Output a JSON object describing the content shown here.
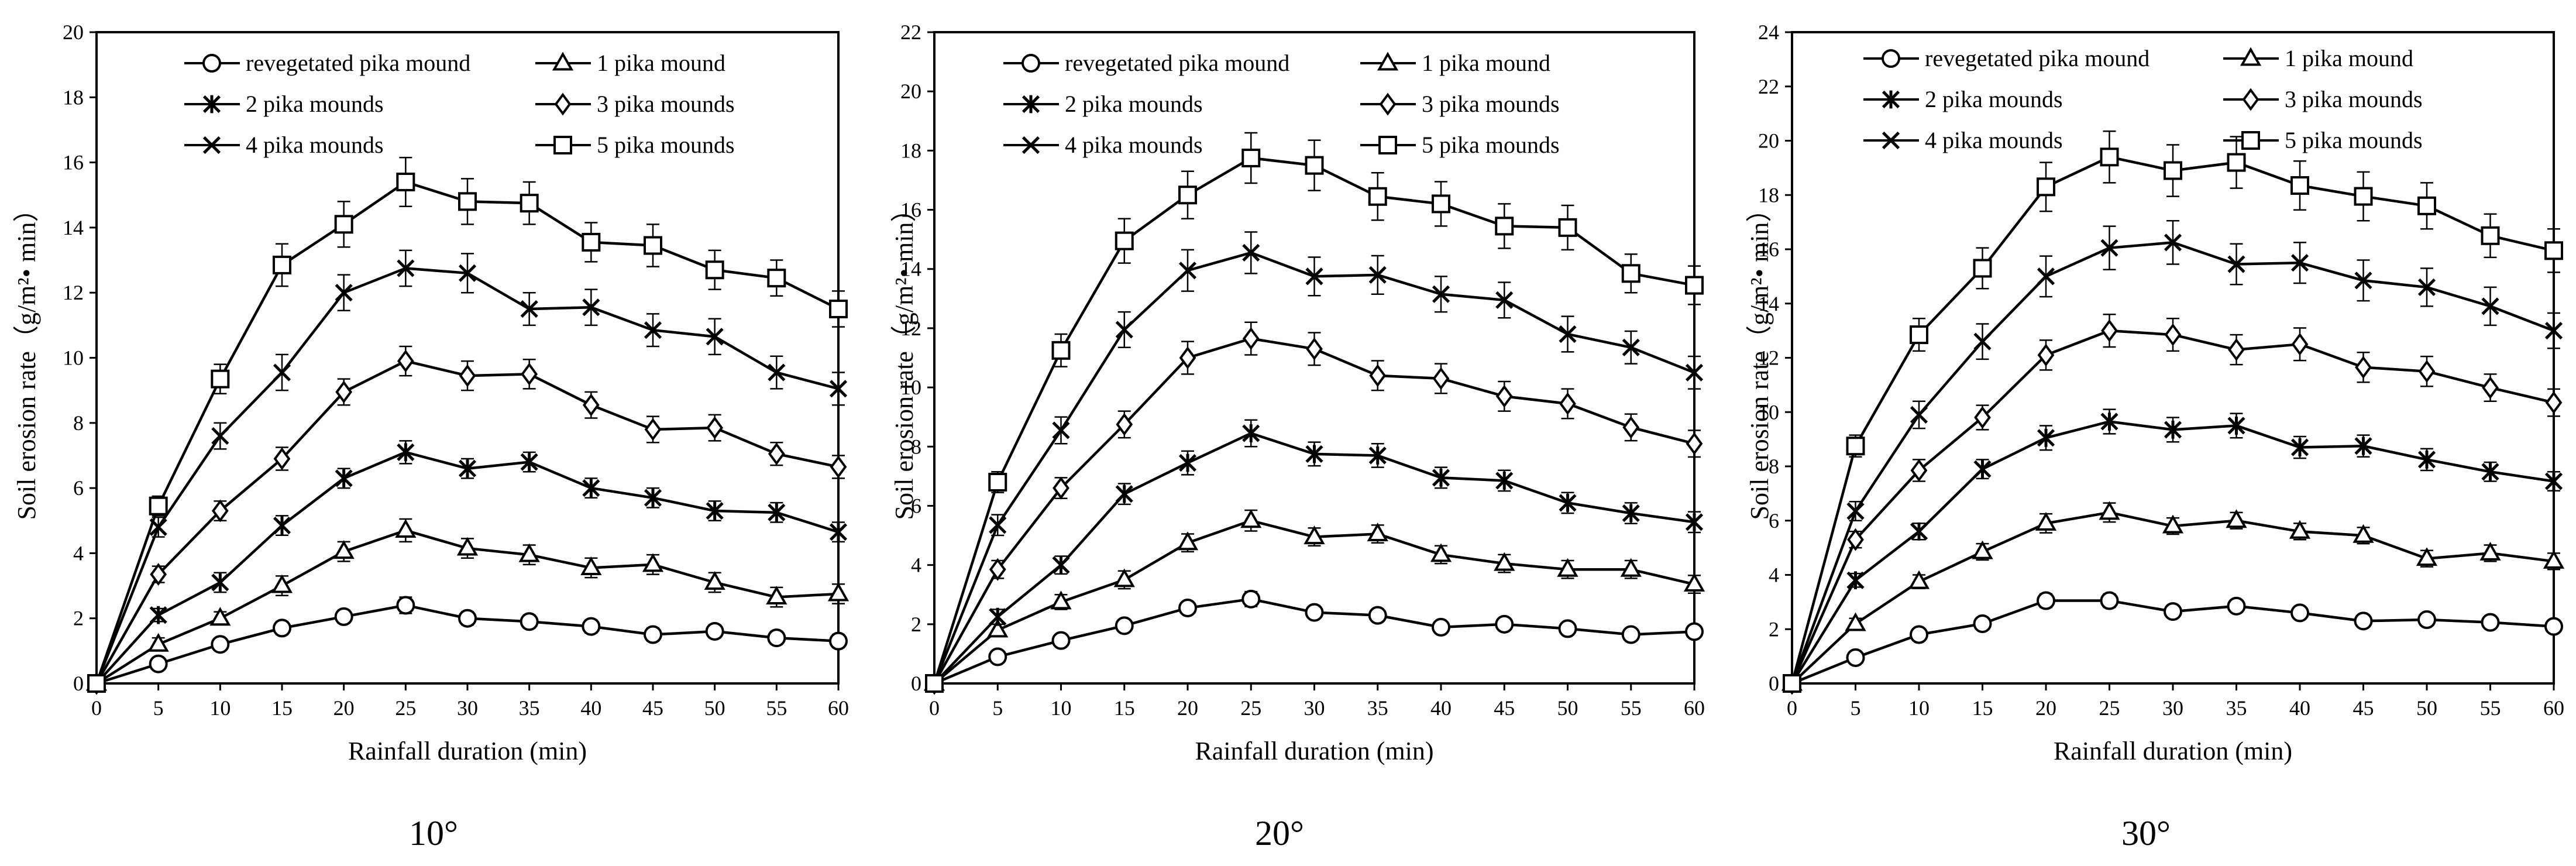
{
  "figure": {
    "line_color": "#000000",
    "series_markers": [
      "circle",
      "triangle",
      "asterisk",
      "diamond",
      "cross",
      "square"
    ]
  },
  "chart_data": [
    {
      "type": "line",
      "title": "10°",
      "xlabel": "Rainfall duration (min)",
      "ylabel": "Soil erosion rate（g/m²• min）",
      "xlim": [
        0,
        60
      ],
      "ylim": [
        0,
        20
      ],
      "xticks": [
        0,
        5,
        10,
        15,
        20,
        25,
        30,
        35,
        40,
        45,
        50,
        55,
        60
      ],
      "yticks": [
        0,
        2,
        4,
        6,
        8,
        10,
        12,
        14,
        16,
        18,
        20
      ],
      "legend_position": "top",
      "x": [
        0,
        5,
        10,
        15,
        20,
        25,
        30,
        35,
        40,
        45,
        50,
        55,
        60
      ],
      "series": [
        {
          "name": "revegetated pika mound",
          "marker": "circle",
          "values": [
            0,
            0.6,
            1.2,
            1.7,
            2.05,
            2.4,
            2.0,
            1.9,
            1.75,
            1.5,
            1.6,
            1.4,
            1.3
          ],
          "errors": [
            0,
            0.15,
            0.15,
            0.2,
            0.2,
            0.25,
            0.2,
            0.2,
            0.2,
            0.2,
            0.2,
            0.2,
            0.2
          ]
        },
        {
          "name": "1 pika mound",
          "marker": "triangle",
          "values": [
            0,
            1.2,
            2.0,
            3.0,
            4.05,
            4.7,
            4.15,
            3.95,
            3.55,
            3.65,
            3.1,
            2.65,
            2.75
          ],
          "errors": [
            0,
            0.2,
            0.2,
            0.3,
            0.3,
            0.35,
            0.3,
            0.3,
            0.3,
            0.3,
            0.3,
            0.3,
            0.3
          ]
        },
        {
          "name": "2 pika mounds",
          "marker": "asterisk",
          "values": [
            0,
            2.1,
            3.1,
            4.85,
            6.3,
            7.1,
            6.6,
            6.8,
            6.0,
            5.7,
            5.3,
            5.25,
            4.65
          ],
          "errors": [
            0,
            0.2,
            0.3,
            0.3,
            0.3,
            0.35,
            0.3,
            0.3,
            0.3,
            0.3,
            0.3,
            0.3,
            0.3
          ]
        },
        {
          "name": "3 pika mounds",
          "marker": "diamond",
          "values": [
            0,
            3.35,
            5.3,
            6.9,
            8.95,
            9.9,
            9.45,
            9.5,
            8.55,
            7.8,
            7.85,
            7.05,
            6.65
          ],
          "errors": [
            0,
            0.25,
            0.3,
            0.35,
            0.4,
            0.45,
            0.45,
            0.45,
            0.4,
            0.4,
            0.4,
            0.35,
            0.35
          ]
        },
        {
          "name": "4 pika mounds",
          "marker": "cross",
          "values": [
            0,
            4.8,
            7.6,
            9.55,
            12.0,
            12.75,
            12.6,
            11.5,
            11.55,
            10.85,
            10.65,
            9.55,
            9.05
          ],
          "errors": [
            0,
            0.3,
            0.4,
            0.55,
            0.55,
            0.55,
            0.6,
            0.5,
            0.55,
            0.5,
            0.55,
            0.5,
            0.5
          ]
        },
        {
          "name": "5 pika mounds",
          "marker": "square",
          "values": [
            0,
            5.45,
            9.35,
            12.85,
            14.1,
            15.4,
            14.8,
            14.75,
            13.55,
            13.45,
            12.7,
            12.45,
            11.5
          ],
          "errors": [
            0,
            0.3,
            0.45,
            0.65,
            0.7,
            0.75,
            0.7,
            0.65,
            0.6,
            0.65,
            0.6,
            0.55,
            0.55
          ]
        }
      ]
    },
    {
      "type": "line",
      "title": "20°",
      "xlabel": "Rainfall duration (min)",
      "ylabel": "Soil erosion rate（g/m²• min）",
      "xlim": [
        0,
        60
      ],
      "ylim": [
        0,
        22
      ],
      "xticks": [
        0,
        5,
        10,
        15,
        20,
        25,
        30,
        35,
        40,
        45,
        50,
        55,
        60
      ],
      "yticks": [
        0,
        2,
        4,
        6,
        8,
        10,
        12,
        14,
        16,
        18,
        20,
        22
      ],
      "legend_position": "top",
      "x": [
        0,
        5,
        10,
        15,
        20,
        25,
        30,
        35,
        40,
        45,
        50,
        55,
        60
      ],
      "series": [
        {
          "name": "revegetated pika mound",
          "marker": "circle",
          "values": [
            0,
            0.9,
            1.45,
            1.95,
            2.55,
            2.85,
            2.4,
            2.3,
            1.9,
            2.0,
            1.85,
            1.65,
            1.75
          ],
          "errors": [
            0,
            0.15,
            0.15,
            0.2,
            0.2,
            0.25,
            0.2,
            0.2,
            0.2,
            0.2,
            0.2,
            0.2,
            0.2
          ]
        },
        {
          "name": "1 pika mound",
          "marker": "triangle",
          "values": [
            0,
            1.8,
            2.75,
            3.5,
            4.75,
            5.5,
            4.95,
            5.05,
            4.35,
            4.05,
            3.85,
            3.85,
            3.35
          ],
          "errors": [
            0,
            0.2,
            0.25,
            0.3,
            0.3,
            0.35,
            0.3,
            0.3,
            0.3,
            0.3,
            0.3,
            0.3,
            0.3
          ]
        },
        {
          "name": "2 pika mounds",
          "marker": "asterisk",
          "values": [
            0,
            2.25,
            4.0,
            6.4,
            7.45,
            8.45,
            7.75,
            7.7,
            6.95,
            6.85,
            6.1,
            5.75,
            5.45
          ],
          "errors": [
            0,
            0.25,
            0.3,
            0.35,
            0.4,
            0.45,
            0.4,
            0.4,
            0.35,
            0.35,
            0.35,
            0.35,
            0.35
          ]
        },
        {
          "name": "3 pika mounds",
          "marker": "diamond",
          "values": [
            0,
            3.85,
            6.6,
            8.75,
            11.0,
            11.65,
            11.3,
            10.4,
            10.3,
            9.7,
            9.45,
            8.65,
            8.1
          ],
          "errors": [
            0,
            0.3,
            0.35,
            0.45,
            0.55,
            0.55,
            0.55,
            0.5,
            0.5,
            0.5,
            0.5,
            0.45,
            0.45
          ]
        },
        {
          "name": "4 pika mounds",
          "marker": "cross",
          "values": [
            0,
            5.35,
            8.55,
            11.95,
            13.95,
            14.55,
            13.75,
            13.8,
            13.15,
            12.95,
            11.8,
            11.35,
            10.5
          ],
          "errors": [
            0,
            0.35,
            0.45,
            0.6,
            0.7,
            0.7,
            0.65,
            0.65,
            0.6,
            0.6,
            0.6,
            0.55,
            0.55
          ]
        },
        {
          "name": "5 pika mounds",
          "marker": "square",
          "values": [
            0,
            6.8,
            11.25,
            14.95,
            16.5,
            17.75,
            17.5,
            16.45,
            16.2,
            15.45,
            15.4,
            13.85,
            13.45
          ],
          "errors": [
            0,
            0.35,
            0.55,
            0.75,
            0.8,
            0.85,
            0.85,
            0.8,
            0.75,
            0.75,
            0.75,
            0.65,
            0.65
          ]
        }
      ]
    },
    {
      "type": "line",
      "title": "30°",
      "xlabel": "Rainfall duration (min)",
      "ylabel": "Soil erosion rate（g/m²• min）",
      "xlim": [
        0,
        60
      ],
      "ylim": [
        0,
        24
      ],
      "xticks": [
        0,
        5,
        10,
        15,
        20,
        25,
        30,
        35,
        40,
        45,
        50,
        55,
        60
      ],
      "yticks": [
        0,
        2,
        4,
        6,
        8,
        10,
        12,
        14,
        16,
        18,
        20,
        22,
        24
      ],
      "legend_position": "top",
      "x": [
        0,
        5,
        10,
        15,
        20,
        25,
        30,
        35,
        40,
        45,
        50,
        55,
        60
      ],
      "series": [
        {
          "name": "revegetated pika mound",
          "marker": "circle",
          "values": [
            0,
            0.95,
            1.8,
            2.2,
            3.05,
            3.05,
            2.65,
            2.85,
            2.6,
            2.3,
            2.35,
            2.25,
            2.1
          ],
          "errors": [
            0,
            0.15,
            0.2,
            0.2,
            0.25,
            0.25,
            0.2,
            0.2,
            0.2,
            0.2,
            0.2,
            0.2,
            0.2
          ]
        },
        {
          "name": "1 pika mound",
          "marker": "triangle",
          "values": [
            0,
            2.2,
            3.75,
            4.85,
            5.9,
            6.3,
            5.8,
            6.0,
            5.6,
            5.45,
            4.6,
            4.8,
            4.5
          ],
          "errors": [
            0,
            0.2,
            0.25,
            0.3,
            0.35,
            0.35,
            0.3,
            0.3,
            0.3,
            0.3,
            0.3,
            0.3,
            0.3
          ]
        },
        {
          "name": "2 pika mounds",
          "marker": "asterisk",
          "values": [
            0,
            3.8,
            5.6,
            7.9,
            9.05,
            9.65,
            9.35,
            9.5,
            8.7,
            8.75,
            8.25,
            7.8,
            7.45
          ],
          "errors": [
            0,
            0.25,
            0.3,
            0.35,
            0.45,
            0.45,
            0.45,
            0.45,
            0.4,
            0.4,
            0.4,
            0.35,
            0.35
          ]
        },
        {
          "name": "3 pika mounds",
          "marker": "diamond",
          "values": [
            0,
            5.3,
            7.85,
            9.8,
            12.1,
            13.0,
            12.85,
            12.3,
            12.5,
            11.65,
            11.5,
            10.9,
            10.35
          ],
          "errors": [
            0,
            0.3,
            0.4,
            0.45,
            0.55,
            0.6,
            0.6,
            0.55,
            0.6,
            0.55,
            0.55,
            0.5,
            0.5
          ]
        },
        {
          "name": "4 pika mounds",
          "marker": "cross",
          "values": [
            0,
            6.35,
            9.9,
            12.6,
            15.0,
            16.05,
            16.25,
            15.45,
            15.5,
            14.85,
            14.6,
            13.9,
            13.0
          ],
          "errors": [
            0,
            0.35,
            0.5,
            0.65,
            0.75,
            0.8,
            0.8,
            0.75,
            0.75,
            0.75,
            0.7,
            0.7,
            0.65
          ]
        },
        {
          "name": "5 pika mounds",
          "marker": "square",
          "values": [
            0,
            8.75,
            12.85,
            15.3,
            18.3,
            19.4,
            18.9,
            19.2,
            18.35,
            17.95,
            17.6,
            16.5,
            15.95
          ],
          "errors": [
            0,
            0.4,
            0.6,
            0.75,
            0.9,
            0.95,
            0.95,
            0.95,
            0.9,
            0.9,
            0.85,
            0.8,
            0.8
          ]
        }
      ]
    }
  ]
}
